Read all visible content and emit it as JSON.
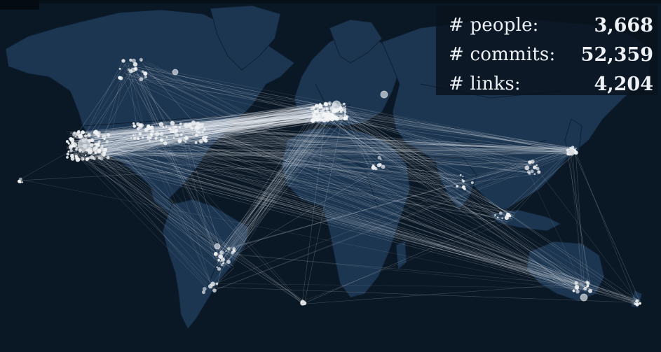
{
  "stats": {
    "people_label": "# people:",
    "people_value": "3,668",
    "commits_label": "# commits:",
    "commits_value": "52,359",
    "links_label": "# links:",
    "links_value": "4,204"
  },
  "colors": {
    "ocean": "#0a1724",
    "land": "#1c3550",
    "border": "#0f2236",
    "link": "#e8eef4",
    "node": "#f2f4f6"
  }
}
